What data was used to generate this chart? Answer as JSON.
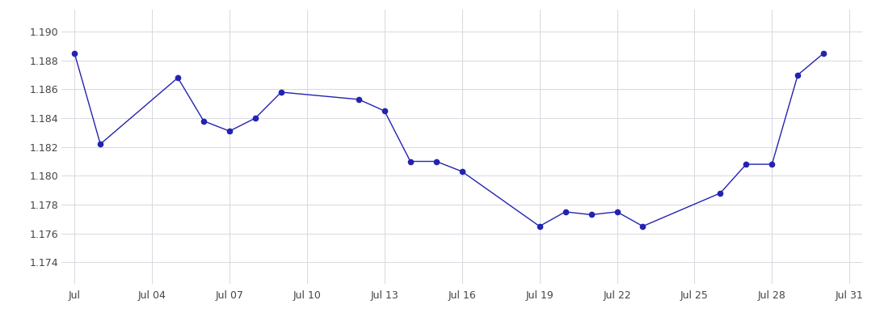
{
  "dates": [
    1,
    2,
    5,
    6,
    7,
    8,
    9,
    12,
    13,
    14,
    15,
    16,
    19,
    20,
    21,
    22,
    23,
    26,
    27,
    28,
    29,
    30
  ],
  "values": [
    1.1885,
    1.1822,
    1.1868,
    1.1838,
    1.1831,
    1.184,
    1.1858,
    1.1853,
    1.1845,
    1.181,
    1.181,
    1.1803,
    1.1765,
    1.1775,
    1.1773,
    1.1775,
    1.1765,
    1.1788,
    1.1808,
    1.1808,
    1.187,
    1.1885
  ],
  "xtick_labels": [
    "Jul",
    "Jul 04",
    "Jul 07",
    "Jul 10",
    "Jul 13",
    "Jul 16",
    "Jul 19",
    "Jul 22",
    "Jul 25",
    "Jul 28",
    "Jul 31"
  ],
  "xtick_days": [
    1,
    4,
    7,
    10,
    13,
    16,
    19,
    22,
    25,
    28,
    31
  ],
  "ytick_values": [
    1.174,
    1.176,
    1.178,
    1.18,
    1.182,
    1.184,
    1.186,
    1.188,
    1.19
  ],
  "line_color": "#2323b0",
  "marker_color": "#2323b0",
  "bg_color": "#ffffff",
  "grid_color": "#d8d8e0",
  "ylim": [
    1.1725,
    1.1915
  ],
  "xlim_start": 0.5,
  "xlim_end": 31.5
}
